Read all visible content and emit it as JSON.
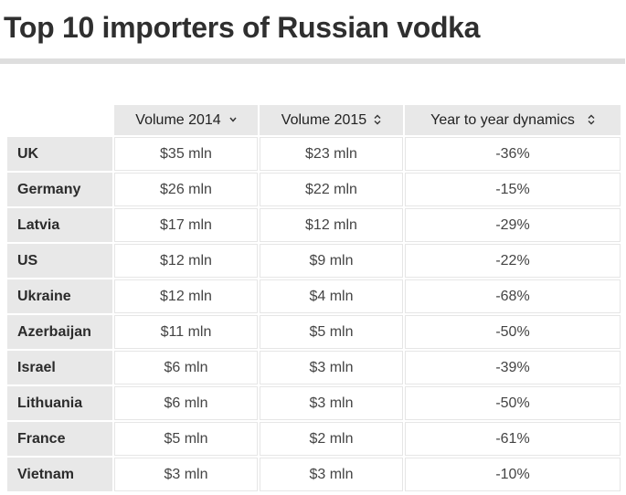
{
  "title": "Top 10 importers of Russian vodka",
  "chart_data": {
    "type": "table",
    "title": "Top 10 importers of Russian vodka",
    "columns": [
      "",
      "Volume 2014",
      "Volume 2015",
      "Year to year dynamics"
    ],
    "sort": {
      "column": "Volume 2014",
      "direction": "descending"
    },
    "rows": [
      [
        "UK",
        "$35 mln",
        "$23 mln",
        "-36%"
      ],
      [
        "Germany",
        "$26 mln",
        "$22 mln",
        "-15%"
      ],
      [
        "Latvia",
        "$17 mln",
        "$12 mln",
        "-29%"
      ],
      [
        "US",
        "$12 mln",
        "$9 mln",
        "-22%"
      ],
      [
        "Ukraine",
        "$12 mln",
        "$4 mln",
        "-68%"
      ],
      [
        "Azerbaijan",
        "$11 mln",
        "$5 mln",
        "-50%"
      ],
      [
        "Israel",
        "$6 mln",
        "$3 mln",
        "-39%"
      ],
      [
        "Lithuania",
        "$6 mln",
        "$3 mln",
        "-50%"
      ],
      [
        "France",
        "$5 mln",
        "$2 mln",
        "-61%"
      ],
      [
        "Vietnam",
        "$3 mln",
        "$3 mln",
        "-10%"
      ]
    ]
  }
}
